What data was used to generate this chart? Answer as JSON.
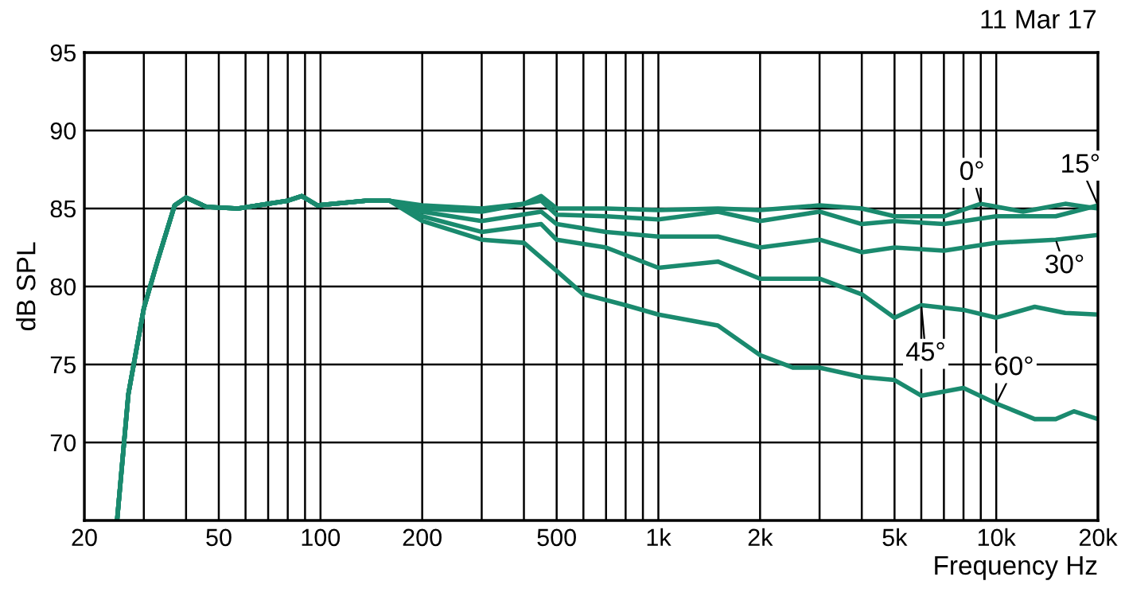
{
  "chart_data": {
    "type": "line",
    "xlabel": "Frequency Hz",
    "ylabel": "dB SPL",
    "annotations": [
      "11 Mar 17"
    ],
    "xlim": [
      20,
      20000
    ],
    "ylim": [
      65,
      95
    ],
    "xticks": [
      20,
      {
        "value": 30,
        "label": null
      },
      {
        "value": 40,
        "label": null
      },
      50,
      {
        "value": 60,
        "label": null
      },
      {
        "value": 70,
        "label": null
      },
      {
        "value": 80,
        "label": null
      },
      {
        "value": 90,
        "label": null
      },
      100,
      200,
      {
        "value": 300,
        "label": null
      },
      {
        "value": 400,
        "label": null
      },
      500,
      {
        "value": 600,
        "label": null
      },
      {
        "value": 700,
        "label": null
      },
      {
        "value": 800,
        "label": null
      },
      {
        "value": 900,
        "label": null
      },
      {
        "value": 1000,
        "label": "1k"
      },
      {
        "value": 2000,
        "label": "2k"
      },
      {
        "value": 3000,
        "label": null
      },
      {
        "value": 4000,
        "label": null
      },
      {
        "value": 5000,
        "label": "5k"
      },
      {
        "value": 6000,
        "label": null
      },
      {
        "value": 7000,
        "label": null
      },
      {
        "value": 8000,
        "label": null
      },
      {
        "value": 9000,
        "label": null
      },
      {
        "value": 10000,
        "label": "10k"
      },
      {
        "value": 20000,
        "label": "20k"
      }
    ],
    "yticks": [
      70,
      75,
      80,
      85,
      90,
      95
    ],
    "log": "x",
    "grid": true,
    "legend": false,
    "line_style": "solid",
    "marker": "none",
    "series": [
      {
        "name": "0°",
        "color": "#1a8a6e",
        "x": [
          25,
          27,
          30,
          33,
          37,
          40,
          46,
          57,
          80,
          88,
          98,
          136,
          160,
          200,
          300,
          400,
          450,
          500,
          700,
          1000,
          1500,
          2000,
          3000,
          4000,
          5000,
          7000,
          9000,
          12000,
          16000,
          20000
        ],
        "values": [
          65,
          73.1,
          78.6,
          81.7,
          85.2,
          85.7,
          85.1,
          85,
          85.5,
          85.8,
          85.2,
          85.5,
          85.5,
          85.2,
          85,
          85.3,
          85.8,
          85,
          85,
          84.9,
          85,
          84.9,
          85.2,
          85,
          84.5,
          84.5,
          85.3,
          84.8,
          85.3,
          85
        ]
      },
      {
        "name": "15°",
        "color": "#1a8a6e",
        "x": [
          25,
          27,
          30,
          33,
          37,
          40,
          46,
          57,
          80,
          88,
          98,
          136,
          160,
          200,
          300,
          450,
          500,
          700,
          1000,
          1500,
          2000,
          3000,
          4000,
          5000,
          7000,
          10000,
          15000,
          20000
        ],
        "values": [
          65,
          73.1,
          78.6,
          81.7,
          85.2,
          85.7,
          85.1,
          85,
          85.5,
          85.8,
          85.2,
          85.5,
          85.5,
          85,
          84.8,
          85.5,
          84.6,
          84.5,
          84.3,
          84.8,
          84.2,
          84.8,
          84,
          84.2,
          84,
          84.5,
          84.5,
          85.2
        ]
      },
      {
        "name": "30°",
        "color": "#1a8a6e",
        "x": [
          25,
          27,
          30,
          33,
          37,
          40,
          46,
          57,
          80,
          88,
          98,
          136,
          160,
          200,
          300,
          450,
          500,
          700,
          1000,
          1500,
          2000,
          3000,
          4000,
          5000,
          7000,
          10000,
          15000,
          20000
        ],
        "values": [
          65,
          73.1,
          78.6,
          81.7,
          85.2,
          85.7,
          85.1,
          85,
          85.5,
          85.8,
          85.2,
          85.5,
          85.5,
          84.8,
          84.2,
          84.8,
          84,
          83.5,
          83.2,
          83.2,
          82.5,
          83,
          82.2,
          82.5,
          82.3,
          82.8,
          83,
          83.3
        ]
      },
      {
        "name": "45°",
        "color": "#1a8a6e",
        "x": [
          25,
          27,
          30,
          33,
          37,
          40,
          46,
          57,
          80,
          88,
          98,
          136,
          160,
          200,
          300,
          450,
          500,
          700,
          1000,
          1500,
          2000,
          3000,
          4000,
          5000,
          6000,
          8000,
          10000,
          13000,
          16000,
          20000
        ],
        "values": [
          65,
          73.1,
          78.6,
          81.7,
          85.2,
          85.7,
          85.1,
          85,
          85.5,
          85.8,
          85.2,
          85.5,
          85.5,
          84.5,
          83.5,
          84,
          83,
          82.5,
          81.2,
          81.6,
          80.5,
          80.5,
          79.5,
          78,
          78.8,
          78.5,
          78,
          78.7,
          78.3,
          78.2
        ]
      },
      {
        "name": "60°",
        "color": "#1a8a6e",
        "x": [
          25,
          27,
          30,
          33,
          37,
          40,
          46,
          57,
          80,
          88,
          98,
          136,
          160,
          200,
          300,
          400,
          500,
          600,
          800,
          1000,
          1500,
          2000,
          2500,
          3000,
          4000,
          5000,
          6000,
          8000,
          10000,
          13000,
          15000,
          17000,
          20000
        ],
        "values": [
          65,
          73.1,
          78.6,
          81.7,
          85.2,
          85.7,
          85.1,
          85,
          85.5,
          85.8,
          85.2,
          85.5,
          85.5,
          84.2,
          83,
          82.8,
          81,
          79.5,
          78.8,
          78.2,
          77.5,
          75.6,
          74.8,
          74.8,
          74.2,
          74,
          73,
          73.5,
          72.5,
          71.5,
          71.5,
          72,
          71.5
        ]
      }
    ]
  }
}
